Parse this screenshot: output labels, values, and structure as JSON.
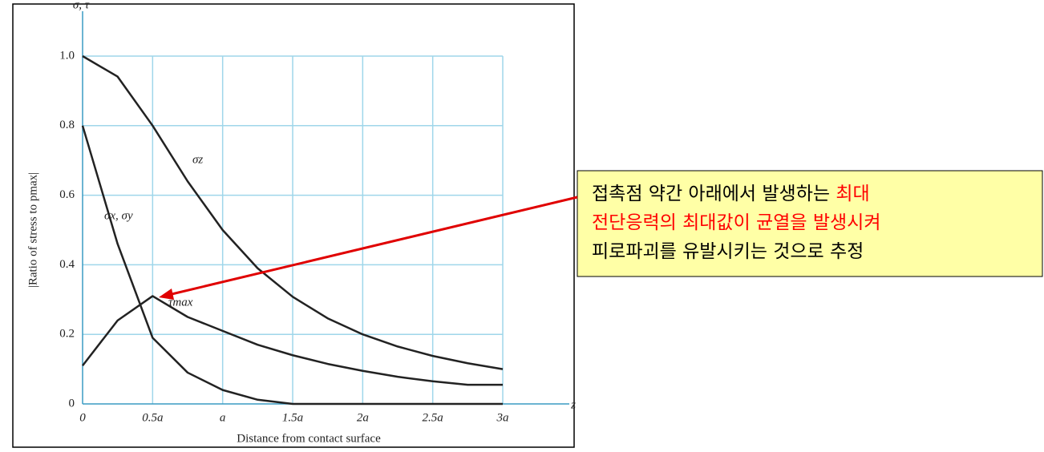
{
  "chart_data": {
    "type": "line",
    "y_axis_top_label": "σ, τ",
    "x_axis_end_label": "z",
    "xlabel": "Distance from contact surface",
    "ylabel": "|Ratio of stress to pmax|",
    "x": [
      0,
      0.25,
      0.5,
      0.75,
      1,
      1.25,
      1.5,
      1.75,
      2,
      2.25,
      2.5,
      2.75,
      3
    ],
    "series": [
      {
        "name": "σz",
        "color": "#222222",
        "values": [
          1.0,
          0.941,
          0.8,
          0.64,
          0.5,
          0.39,
          0.308,
          0.246,
          0.2,
          0.165,
          0.138,
          0.117,
          0.1
        ]
      },
      {
        "name": "σx, σy",
        "color": "#222222",
        "values": [
          0.8,
          0.46,
          0.19,
          0.09,
          0.04,
          0.012,
          0,
          0,
          0,
          0,
          0,
          0,
          0
        ]
      },
      {
        "name": "τmax",
        "color": "#222222",
        "values": [
          0.11,
          0.24,
          0.31,
          0.25,
          0.21,
          0.17,
          0.14,
          0.115,
          0.095,
          0.078,
          0.065,
          0.055,
          0.055
        ]
      }
    ],
    "xlim": [
      0,
      3
    ],
    "ylim": [
      0,
      1.0
    ],
    "xticks": [
      0,
      {
        "value": 0.5,
        "label": "0.5a"
      },
      {
        "value": 1,
        "label": "a"
      },
      {
        "value": 1.5,
        "label": "1.5a"
      },
      {
        "value": 2,
        "label": "2a"
      },
      {
        "value": 2.5,
        "label": "2.5a"
      },
      {
        "value": 3,
        "label": "3a"
      }
    ],
    "yticks": [
      0,
      0.2,
      0.4,
      0.6,
      0.8,
      {
        "value": 1.0,
        "label": "1.0"
      }
    ],
    "grid": true,
    "grid_color": "#9fd6ea",
    "annotation": [
      [
        {
          "text": "접촉점 약간 아래에서 발생하는 ",
          "color": "#000000"
        },
        {
          "text": "최대",
          "color": "#ff0000"
        }
      ],
      [
        {
          "text": "전단응력의 최대값이 균열을 발생시켜",
          "color": "#ff0000"
        }
      ],
      [
        {
          "text": "피로파괴를 유발시키는 것으로 추정",
          "color": "#000000"
        }
      ]
    ]
  }
}
